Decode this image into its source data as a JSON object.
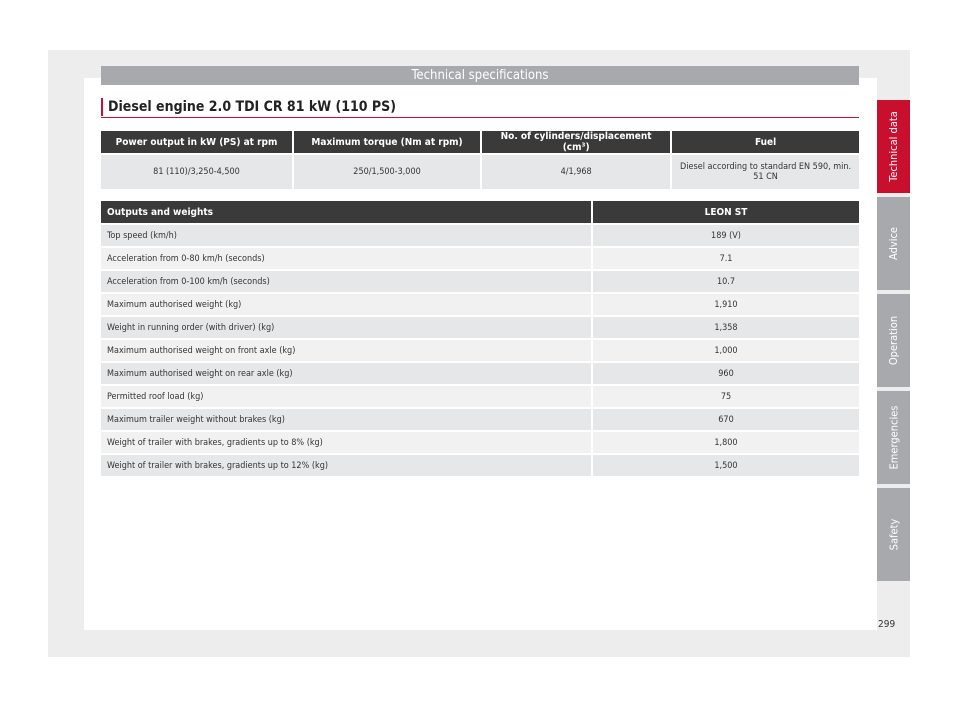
{
  "header": {
    "title": "Technical specifications"
  },
  "section": {
    "title": "Diesel engine 2.0 TDI CR 81 kW (110 PS)"
  },
  "engine_table": {
    "headers": [
      "Power output in kW (PS) at rpm",
      "Maximum torque (Nm at rpm)",
      "No. of cylinders/displacement (cm³)",
      "Fuel"
    ],
    "row": [
      "81 (110)/3,250-4,500",
      "250/1,500-3,000",
      "4/1,968",
      "Diesel according to standard EN 590, min. 51 CN"
    ]
  },
  "weights_table": {
    "headers": [
      "Outputs and weights",
      "LEON ST"
    ],
    "rows": [
      [
        "Top speed (km/h)",
        "189 (V)"
      ],
      [
        "Acceleration from 0-80 km/h (seconds)",
        "7.1"
      ],
      [
        "Acceleration from 0-100 km/h (seconds)",
        "10.7"
      ],
      [
        "Maximum authorised weight (kg)",
        "1,910"
      ],
      [
        "Weight in running order (with driver) (kg)",
        "1,358"
      ],
      [
        "Maximum authorised weight on front axle (kg)",
        "1,000"
      ],
      [
        "Maximum authorised weight on rear axle (kg)",
        "960"
      ],
      [
        "Permitted roof load (kg)",
        "75"
      ],
      [
        "Maximum trailer weight without brakes (kg)",
        "670"
      ],
      [
        "Weight of trailer with brakes, gradients up to 8% (kg)",
        "1,800"
      ],
      [
        "Weight of trailer with brakes, gradients up to 12% (kg)",
        "1,500"
      ]
    ]
  },
  "side_tabs": [
    {
      "label": "Technical data",
      "active": true
    },
    {
      "label": "Advice",
      "active": false
    },
    {
      "label": "Operation",
      "active": false
    },
    {
      "label": "Emergencies",
      "active": false
    },
    {
      "label": "Safety",
      "active": false
    }
  ],
  "page_number": "299",
  "colors": {
    "accent": "#c8102e",
    "header_gray": "#a7a9ac",
    "table_header": "#3a3a3a"
  }
}
